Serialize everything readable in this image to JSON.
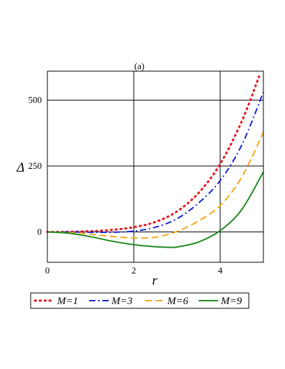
{
  "chart_data": {
    "type": "line",
    "title": "(a)",
    "xlabel": "r",
    "ylabel": "Δ",
    "xlim": [
      0,
      5
    ],
    "ylim": [
      -115,
      610
    ],
    "xticks": [
      0,
      2,
      4
    ],
    "yticks": [
      0,
      250,
      500
    ],
    "grid": true,
    "legend_position": "bottom",
    "series": [
      {
        "name": "M=1",
        "color": "#e8141b",
        "style": "dotted",
        "x": [
          0,
          0.5,
          1.0,
          1.5,
          2.0,
          2.5,
          3.0,
          3.5,
          4.0,
          4.5,
          4.9
        ],
        "y": [
          0,
          1,
          3,
          8,
          18,
          38,
          78,
          148,
          258,
          420,
          590
        ]
      },
      {
        "name": "M=3",
        "color": "#1522d8",
        "style": "dashdot",
        "x": [
          0,
          0.5,
          1.0,
          1.5,
          2.0,
          2.5,
          3.0,
          3.5,
          4.0,
          4.5,
          5.0
        ],
        "y": [
          0,
          0,
          -1,
          -1,
          3,
          18,
          50,
          110,
          195,
          330,
          530
        ]
      },
      {
        "name": "M=6",
        "color": "#f4a81d",
        "style": "dashed",
        "x": [
          0,
          0.5,
          1.0,
          1.5,
          2.0,
          2.5,
          3.0,
          3.5,
          4.0,
          4.5,
          5.0
        ],
        "y": [
          0,
          -2,
          -8,
          -17,
          -23,
          -20,
          2,
          42,
          100,
          208,
          378
        ]
      },
      {
        "name": "M=9",
        "color": "#1f8a1f",
        "style": "solid",
        "x": [
          0,
          0.5,
          1.0,
          1.5,
          2.0,
          2.5,
          2.8,
          3.0,
          3.5,
          4.0,
          4.5,
          5.0
        ],
        "y": [
          0,
          -5,
          -18,
          -35,
          -48,
          -56,
          -58,
          -57,
          -38,
          5,
          85,
          228
        ]
      }
    ]
  }
}
